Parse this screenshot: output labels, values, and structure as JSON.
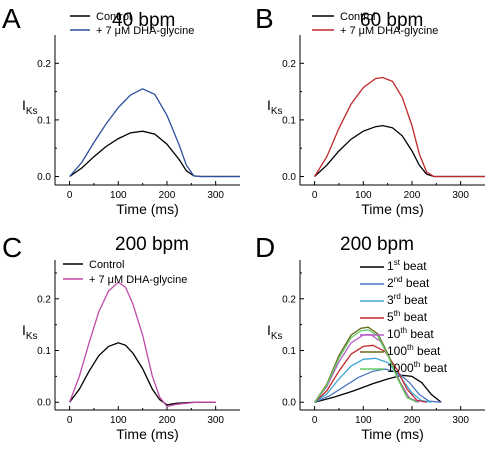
{
  "chart_data": [
    {
      "letter": "A",
      "title": "40 bpm",
      "type": "line",
      "xlabel": "Time (ms)",
      "ylabel_main": "I",
      "ylabel_sub": "Ks",
      "xlim": [
        -30,
        350
      ],
      "ylim": [
        -0.015,
        0.25
      ],
      "xticks": [
        0,
        100,
        200,
        300
      ],
      "xtick_labels": [
        "0",
        "100",
        "200",
        "300"
      ],
      "yticks": [
        0.0,
        0.1,
        0.2
      ],
      "ytick_labels": [
        "0.0",
        "0.1",
        "0.2"
      ],
      "legend": {
        "placement": "top"
      },
      "series": [
        {
          "name": "Control",
          "color": "#000000",
          "x": [
            0,
            25,
            50,
            75,
            100,
            125,
            150,
            175,
            200,
            225,
            240,
            255,
            270,
            300,
            350
          ],
          "y": [
            0.0,
            0.015,
            0.035,
            0.053,
            0.067,
            0.077,
            0.08,
            0.075,
            0.057,
            0.03,
            0.01,
            0.001,
            0.0,
            0.0,
            0.0
          ]
        },
        {
          "name": "+ 7 μM DHA-glycine",
          "color": "#2d4fa0",
          "x": [
            0,
            25,
            50,
            75,
            100,
            125,
            150,
            175,
            200,
            225,
            240,
            255,
            270,
            300,
            350
          ],
          "y": [
            0.0,
            0.025,
            0.06,
            0.093,
            0.122,
            0.144,
            0.155,
            0.145,
            0.108,
            0.056,
            0.02,
            0.001,
            0.0,
            0.0,
            0.0
          ]
        }
      ]
    },
    {
      "letter": "B",
      "title": "60 bpm",
      "type": "line",
      "xlabel": "Time (ms)",
      "ylabel_main": "I",
      "ylabel_sub": "Ks",
      "xlim": [
        -30,
        350
      ],
      "ylim": [
        -0.015,
        0.25
      ],
      "xticks": [
        0,
        100,
        200,
        300
      ],
      "xtick_labels": [
        "0",
        "100",
        "200",
        "300"
      ],
      "yticks": [
        0.0,
        0.1,
        0.2
      ],
      "ytick_labels": [
        "0.0",
        "0.1",
        "0.2"
      ],
      "legend": {
        "placement": "top"
      },
      "series": [
        {
          "name": "Control",
          "color": "#000000",
          "x": [
            0,
            25,
            50,
            75,
            100,
            125,
            140,
            160,
            180,
            200,
            215,
            230,
            245,
            270,
            350
          ],
          "y": [
            0.0,
            0.02,
            0.045,
            0.066,
            0.08,
            0.088,
            0.09,
            0.086,
            0.072,
            0.045,
            0.02,
            0.004,
            0.0,
            0.0,
            0.0
          ]
        },
        {
          "name": "+ 7 μM DHA-glycine",
          "color": "#c0282b",
          "x": [
            0,
            25,
            50,
            75,
            100,
            125,
            140,
            160,
            180,
            200,
            215,
            230,
            245,
            270,
            350
          ],
          "y": [
            0.0,
            0.035,
            0.085,
            0.128,
            0.157,
            0.173,
            0.175,
            0.168,
            0.14,
            0.09,
            0.04,
            0.008,
            0.0,
            0.0,
            0.0
          ]
        }
      ]
    },
    {
      "letter": "C",
      "title": "200 bpm",
      "type": "line",
      "xlabel": "Time (ms)",
      "ylabel_main": "I",
      "ylabel_sub": "Ks",
      "xlim": [
        -30,
        350
      ],
      "ylim": [
        -0.015,
        0.275
      ],
      "xticks": [
        0,
        100,
        200,
        300
      ],
      "xtick_labels": [
        "0",
        "100",
        "200",
        "300"
      ],
      "yticks": [
        0.0,
        0.1,
        0.2
      ],
      "ytick_labels": [
        "0.0",
        "0.1",
        "0.2"
      ],
      "legend": {
        "placement": "top"
      },
      "series": [
        {
          "name": "Control",
          "color": "#000000",
          "x": [
            0,
            20,
            40,
            60,
            80,
            100,
            115,
            130,
            150,
            170,
            185,
            200,
            220,
            260,
            300
          ],
          "y": [
            0.0,
            0.025,
            0.06,
            0.09,
            0.108,
            0.115,
            0.11,
            0.095,
            0.065,
            0.025,
            0.005,
            -0.005,
            -0.002,
            0.0,
            0.0
          ]
        },
        {
          "name": "+ 7 μM DHA-glycine",
          "color": "#c04aa8",
          "x": [
            0,
            20,
            40,
            60,
            80,
            100,
            115,
            130,
            150,
            170,
            185,
            200,
            220,
            260,
            300
          ],
          "y": [
            0.0,
            0.05,
            0.115,
            0.175,
            0.215,
            0.232,
            0.222,
            0.19,
            0.13,
            0.05,
            0.01,
            -0.008,
            -0.004,
            0.0,
            0.0
          ]
        }
      ]
    },
    {
      "letter": "D",
      "title": "200 bpm",
      "type": "line",
      "xlabel": "Time (ms)",
      "ylabel_main": "I",
      "ylabel_sub": "Ks",
      "xlim": [
        -30,
        350
      ],
      "ylim": [
        -0.015,
        0.275
      ],
      "xticks": [
        0,
        100,
        200,
        300
      ],
      "xtick_labels": [
        "0",
        "100",
        "200",
        "300"
      ],
      "yticks": [
        0.0,
        0.1,
        0.2
      ],
      "ytick_labels": [
        "0.0",
        "0.1",
        "0.2"
      ],
      "legend": {
        "placement": "right"
      },
      "series": [
        {
          "name": "1st beat",
          "name_main": "1",
          "name_sup": "st",
          "name_tail": " beat",
          "color": "#000000",
          "x": [
            0,
            40,
            80,
            120,
            150,
            180,
            200,
            220,
            240,
            260
          ],
          "y": [
            0.0,
            0.01,
            0.022,
            0.036,
            0.045,
            0.052,
            0.05,
            0.038,
            0.015,
            0.0
          ]
        },
        {
          "name": "2nd beat",
          "name_main": "2",
          "name_sup": "nd",
          "name_tail": " beat",
          "color": "#4a78c0",
          "x": [
            0,
            30,
            60,
            90,
            120,
            145,
            170,
            195,
            215,
            235,
            260
          ],
          "y": [
            0.0,
            0.012,
            0.03,
            0.048,
            0.06,
            0.064,
            0.058,
            0.038,
            0.015,
            0.002,
            0.0
          ]
        },
        {
          "name": "3rd beat",
          "name_main": "3",
          "name_sup": "rd",
          "name_tail": " beat",
          "color": "#3fa7d6",
          "x": [
            0,
            25,
            50,
            75,
            100,
            125,
            150,
            175,
            200,
            220,
            240
          ],
          "y": [
            0.0,
            0.016,
            0.045,
            0.07,
            0.083,
            0.085,
            0.077,
            0.05,
            0.018,
            0.003,
            0.0
          ]
        },
        {
          "name": "5th beat",
          "name_main": "5",
          "name_sup": "th",
          "name_tail": " beat",
          "color": "#c0282b",
          "x": [
            0,
            25,
            50,
            75,
            100,
            120,
            145,
            170,
            190,
            210,
            230
          ],
          "y": [
            0.0,
            0.022,
            0.06,
            0.093,
            0.108,
            0.11,
            0.098,
            0.062,
            0.025,
            0.004,
            0.0
          ]
        },
        {
          "name": "10th beat",
          "name_main": "10",
          "name_sup": "th",
          "name_tail": " beat",
          "color": "#b65ac6",
          "x": [
            0,
            25,
            50,
            75,
            100,
            115,
            135,
            155,
            175,
            195,
            215
          ],
          "y": [
            0.0,
            0.03,
            0.078,
            0.115,
            0.13,
            0.131,
            0.118,
            0.082,
            0.04,
            0.008,
            0.0
          ]
        },
        {
          "name": "100th beat",
          "name_main": "100",
          "name_sup": "th",
          "name_tail": " beat",
          "color": "#6b6a1e",
          "x": [
            0,
            25,
            50,
            75,
            95,
            110,
            130,
            150,
            170,
            190,
            210
          ],
          "y": [
            0.0,
            0.035,
            0.09,
            0.13,
            0.143,
            0.145,
            0.132,
            0.095,
            0.048,
            0.01,
            0.0
          ]
        },
        {
          "name": "1000th beat",
          "name_main": "1000",
          "name_sup": "th",
          "name_tail": " beat",
          "color": "#66cc66",
          "x": [
            0,
            25,
            50,
            75,
            95,
            110,
            130,
            150,
            170,
            190,
            210
          ],
          "y": [
            0.0,
            0.033,
            0.085,
            0.125,
            0.138,
            0.14,
            0.128,
            0.092,
            0.046,
            0.009,
            0.0
          ]
        }
      ]
    }
  ]
}
